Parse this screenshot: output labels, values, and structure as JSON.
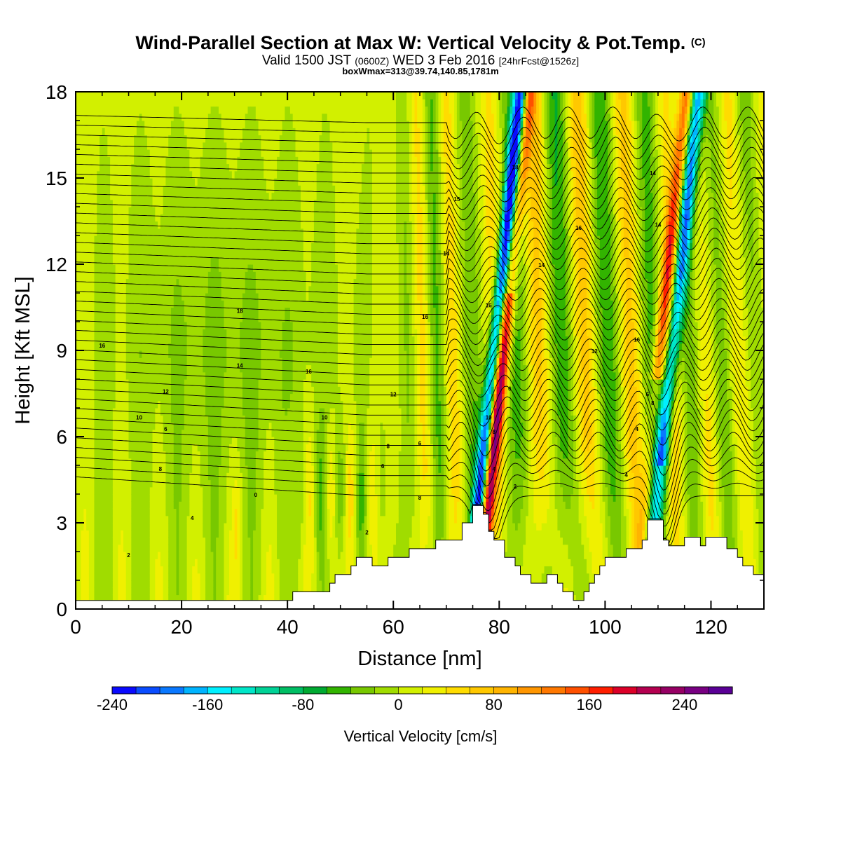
{
  "header": {
    "title": "Wind-Parallel Section at Max W: Vertical Velocity & Pot.Temp.",
    "title_mark": "(C)",
    "valid_prefix": "Valid 1500 JST",
    "valid_utc": "(0600Z)",
    "valid_date": "WED 3 Feb 2016",
    "forecast": "[24hrFcst@1526z]",
    "box_info": "boxWmax=313@39.74,140.85,1781m"
  },
  "chart_data": {
    "type": "heatmap",
    "xlabel": "Distance [nm]",
    "ylabel": "Height [Kft MSL]",
    "xlim": [
      0,
      130
    ],
    "ylim": [
      0,
      18
    ],
    "x_ticks": [
      0,
      20,
      40,
      60,
      80,
      100,
      120
    ],
    "y_ticks": [
      0,
      3,
      6,
      9,
      12,
      15,
      18
    ],
    "colorbar": {
      "label": "Vertical Velocity [cm/s]",
      "range": [
        -240,
        280
      ],
      "step": 20,
      "ticks": [
        -240,
        -160,
        -80,
        0,
        80,
        160,
        240
      ],
      "colors": [
        "#0a0aff",
        "#0a4cff",
        "#0a78ff",
        "#00b4ff",
        "#00f0ff",
        "#00e6c8",
        "#00d296",
        "#00be64",
        "#00aa32",
        "#32b400",
        "#78c800",
        "#a0dc00",
        "#d2f000",
        "#f0f000",
        "#ffdc00",
        "#ffc800",
        "#ffb400",
        "#ff9600",
        "#ff7800",
        "#ff5000",
        "#ff1e00",
        "#dc0028",
        "#b40050",
        "#960064",
        "#780082",
        "#5a0096"
      ]
    },
    "theta_contour_labels": [
      {
        "x": 10,
        "y": 1.8,
        "text": "2"
      },
      {
        "x": 22,
        "y": 3.1,
        "text": "4"
      },
      {
        "x": 16,
        "y": 4.8,
        "text": "8"
      },
      {
        "x": 17,
        "y": 6.2,
        "text": "6"
      },
      {
        "x": 12,
        "y": 6.6,
        "text": "10"
      },
      {
        "x": 17,
        "y": 7.5,
        "text": "12"
      },
      {
        "x": 5,
        "y": 9.1,
        "text": "16"
      },
      {
        "x": 31,
        "y": 8.4,
        "text": "14"
      },
      {
        "x": 31,
        "y": 10.3,
        "text": "18"
      },
      {
        "x": 34,
        "y": 3.9,
        "text": "0"
      },
      {
        "x": 47,
        "y": 6.6,
        "text": "10"
      },
      {
        "x": 44,
        "y": 8.2,
        "text": "16"
      },
      {
        "x": 55,
        "y": 2.6,
        "text": "2"
      },
      {
        "x": 58,
        "y": 4.9,
        "text": "6"
      },
      {
        "x": 59,
        "y": 5.6,
        "text": "8"
      },
      {
        "x": 60,
        "y": 7.4,
        "text": "12"
      },
      {
        "x": 65,
        "y": 5.7,
        "text": "6"
      },
      {
        "x": 65,
        "y": 3.8,
        "text": "8"
      },
      {
        "x": 66,
        "y": 10.1,
        "text": "16"
      },
      {
        "x": 70,
        "y": 12.3,
        "text": "14"
      },
      {
        "x": 72,
        "y": 14.2,
        "text": "15"
      },
      {
        "x": 78,
        "y": 10.5,
        "text": "16"
      },
      {
        "x": 78,
        "y": 6.6,
        "text": "10"
      },
      {
        "x": 79,
        "y": 6.1,
        "text": "8"
      },
      {
        "x": 79,
        "y": 4.8,
        "text": "4"
      },
      {
        "x": 82,
        "y": 7.6,
        "text": "6"
      },
      {
        "x": 83,
        "y": 4.2,
        "text": "2"
      },
      {
        "x": 83,
        "y": 15.3,
        "text": "18"
      },
      {
        "x": 88,
        "y": 11.9,
        "text": "14"
      },
      {
        "x": 95,
        "y": 13.2,
        "text": "16"
      },
      {
        "x": 98,
        "y": 8.9,
        "text": "12"
      },
      {
        "x": 104,
        "y": 4.6,
        "text": "4"
      },
      {
        "x": 106,
        "y": 9.3,
        "text": "16"
      },
      {
        "x": 106,
        "y": 6.2,
        "text": "4"
      },
      {
        "x": 108,
        "y": 7.4,
        "text": "6"
      },
      {
        "x": 109,
        "y": 7.1,
        "text": "8"
      },
      {
        "x": 109,
        "y": 15.1,
        "text": "14"
      },
      {
        "x": 110,
        "y": 13.3,
        "text": "14"
      }
    ]
  }
}
